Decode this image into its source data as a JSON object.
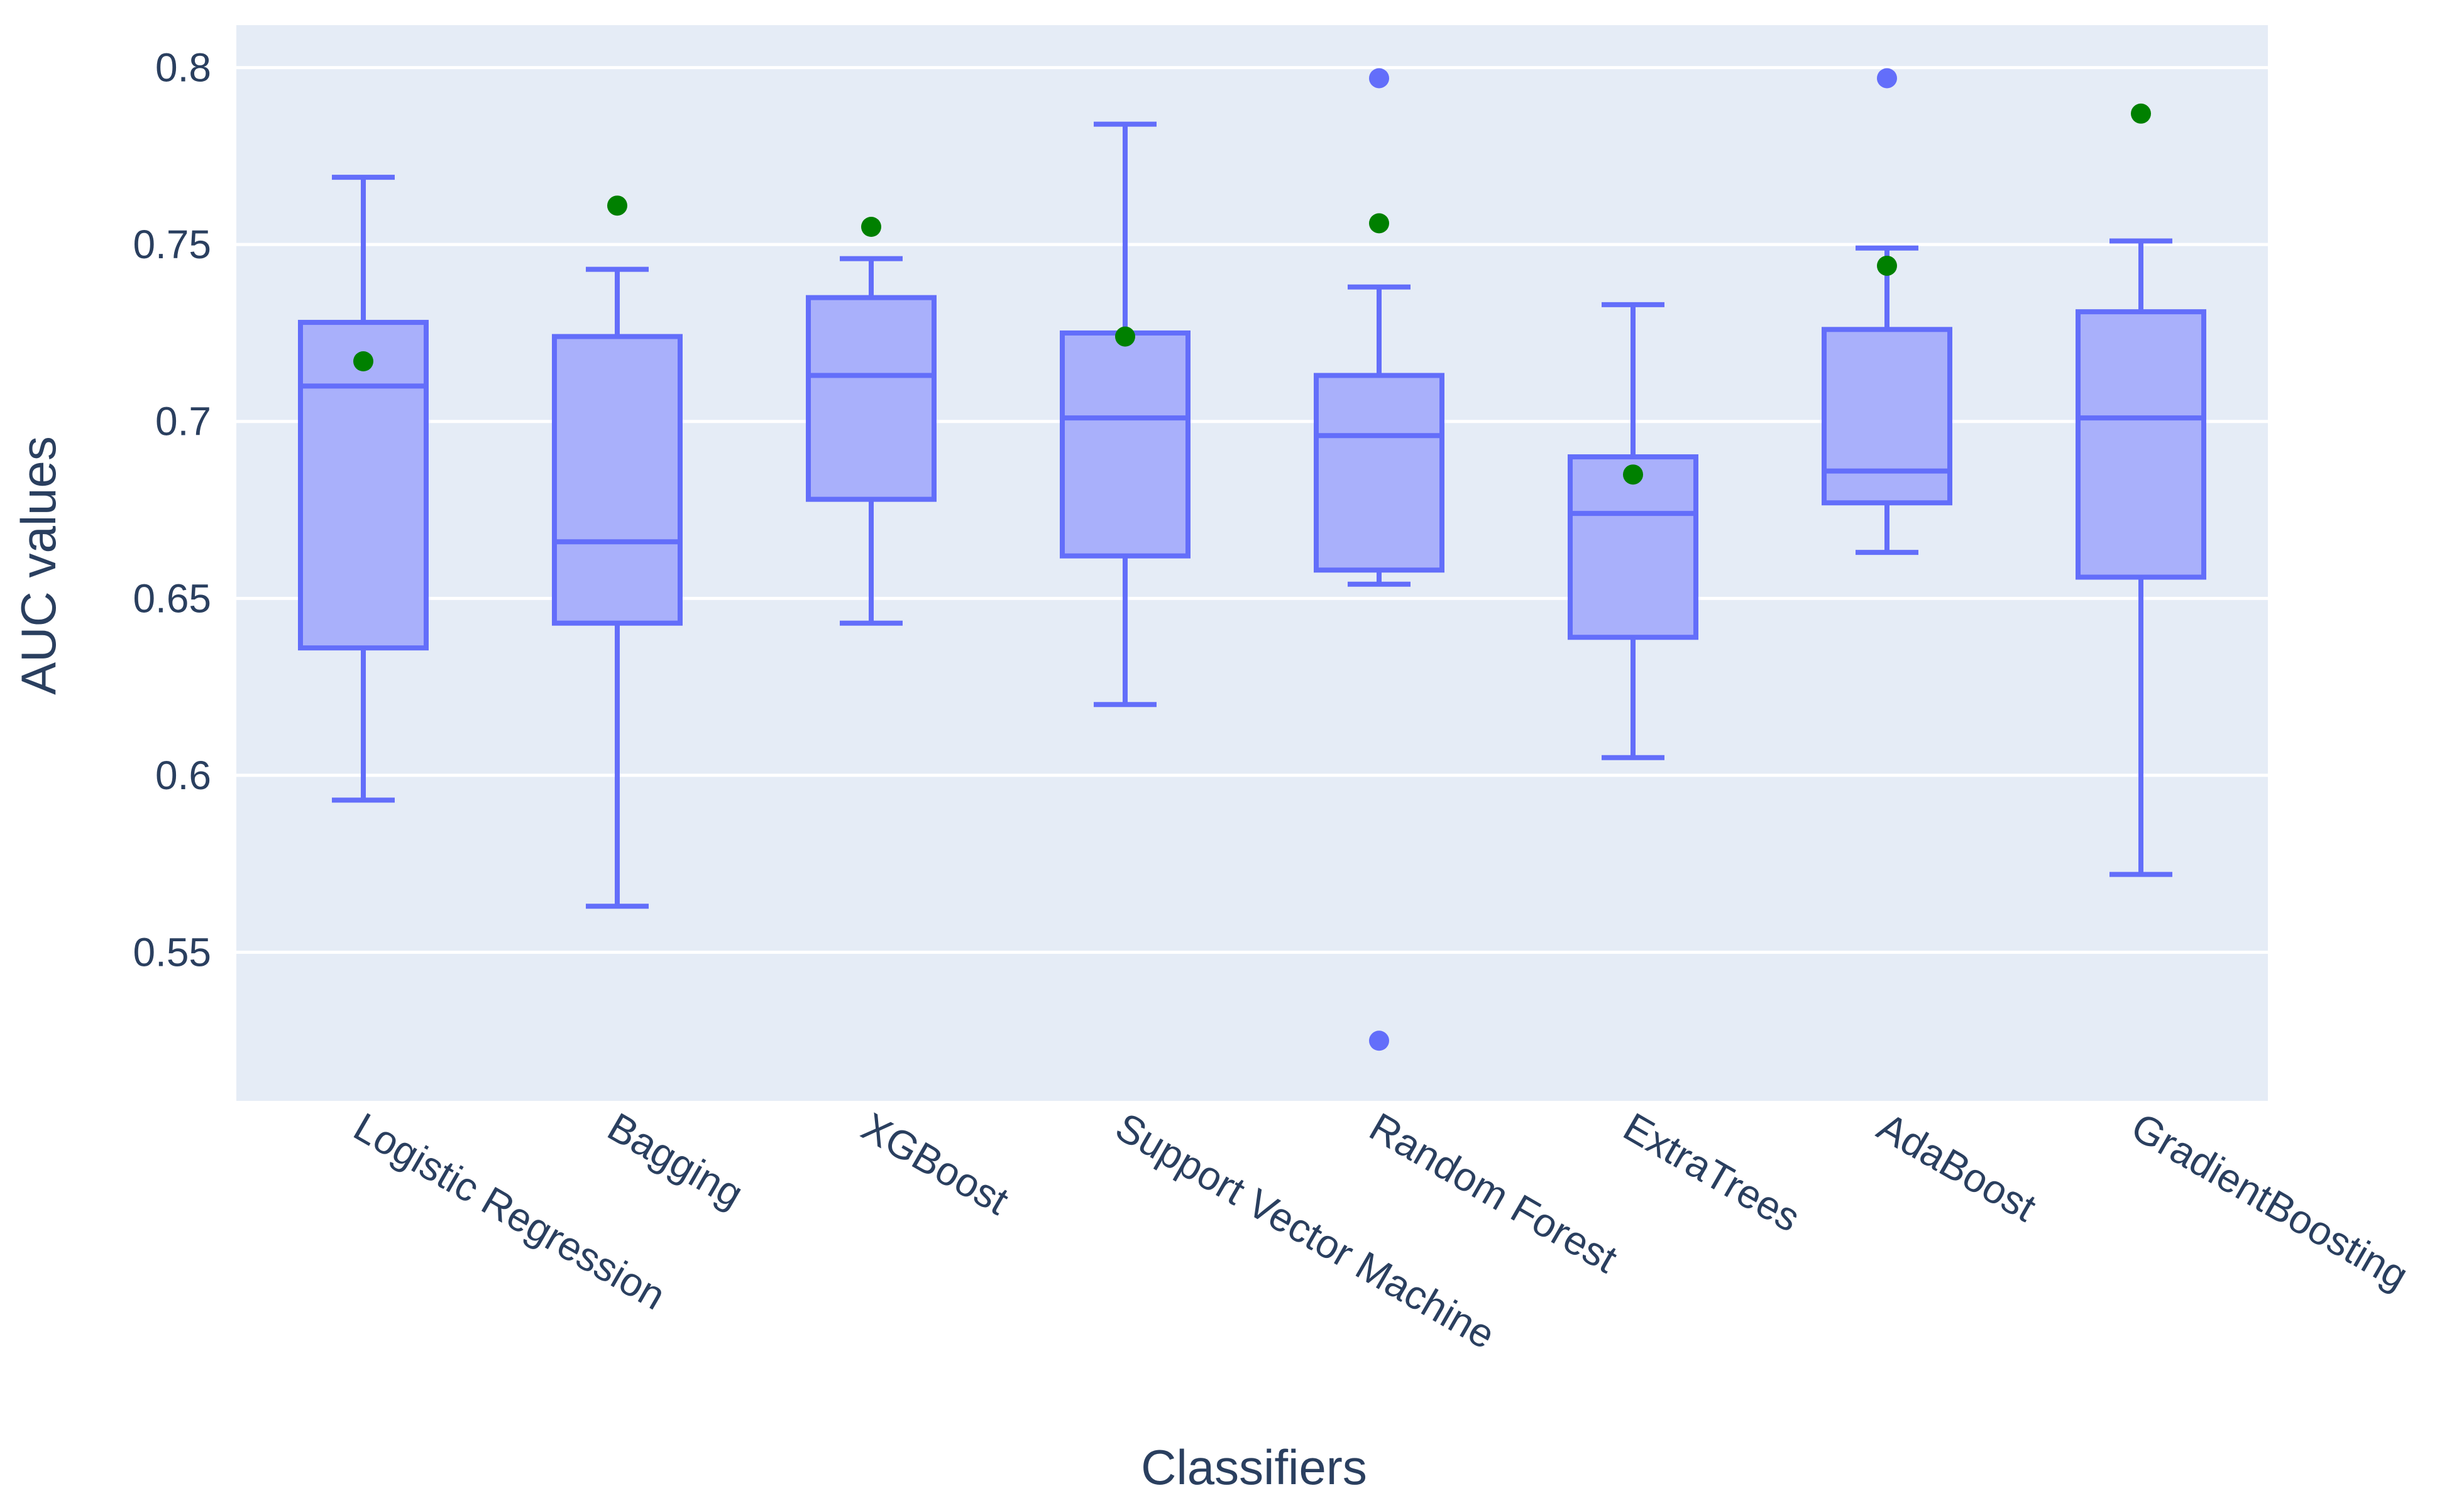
{
  "chart_data": {
    "type": "box",
    "title": "",
    "xlabel": "Classifiers",
    "ylabel": "AUC values",
    "ylim": [
      0.508,
      0.812
    ],
    "yticks": [
      {
        "value": 0.55,
        "label": "0.55"
      },
      {
        "value": 0.6,
        "label": "0.6"
      },
      {
        "value": 0.65,
        "label": "0.65"
      },
      {
        "value": 0.7,
        "label": "0.7"
      },
      {
        "value": 0.75,
        "label": "0.75"
      },
      {
        "value": 0.8,
        "label": "0.8"
      }
    ],
    "grid": true,
    "categories": [
      "Logistic Regression",
      "Bagging",
      "XGBoost",
      "Support Vector Machine",
      "Random Forest",
      "ExtraTrees",
      "AdaBoost",
      "GradientBoosting"
    ],
    "boxes": [
      {
        "name": "Logistic Regression",
        "lower_whisker": 0.593,
        "q1": 0.636,
        "median": 0.71,
        "q3": 0.728,
        "upper_whisker": 0.769,
        "outliers": [],
        "marker": 0.717
      },
      {
        "name": "Bagging",
        "lower_whisker": 0.563,
        "q1": 0.643,
        "median": 0.666,
        "q3": 0.724,
        "upper_whisker": 0.743,
        "outliers": [],
        "marker": 0.761
      },
      {
        "name": "XGBoost",
        "lower_whisker": 0.643,
        "q1": 0.678,
        "median": 0.713,
        "q3": 0.735,
        "upper_whisker": 0.746,
        "outliers": [],
        "marker": 0.755
      },
      {
        "name": "Support Vector Machine",
        "lower_whisker": 0.62,
        "q1": 0.662,
        "median": 0.701,
        "q3": 0.725,
        "upper_whisker": 0.784,
        "outliers": [],
        "marker": 0.724
      },
      {
        "name": "Random Forest",
        "lower_whisker": 0.654,
        "q1": 0.658,
        "median": 0.696,
        "q3": 0.713,
        "upper_whisker": 0.738,
        "outliers": [
          0.797,
          0.525
        ],
        "marker": 0.756
      },
      {
        "name": "ExtraTrees",
        "lower_whisker": 0.605,
        "q1": 0.639,
        "median": 0.674,
        "q3": 0.69,
        "upper_whisker": 0.733,
        "outliers": [],
        "marker": 0.685
      },
      {
        "name": "AdaBoost",
        "lower_whisker": 0.663,
        "q1": 0.677,
        "median": 0.686,
        "q3": 0.726,
        "upper_whisker": 0.749,
        "outliers": [
          0.797
        ],
        "marker": 0.744
      },
      {
        "name": "GradientBoosting",
        "lower_whisker": 0.572,
        "q1": 0.656,
        "median": 0.701,
        "q3": 0.731,
        "upper_whisker": 0.751,
        "outliers": [],
        "marker": 0.787
      }
    ],
    "colors": {
      "box_line": "#636efa",
      "box_fill": "#a9b0fb",
      "marker": "#008000",
      "plot_bg": "#e5ecf6",
      "grid": "#ffffff",
      "text": "#2a3f5f"
    }
  }
}
